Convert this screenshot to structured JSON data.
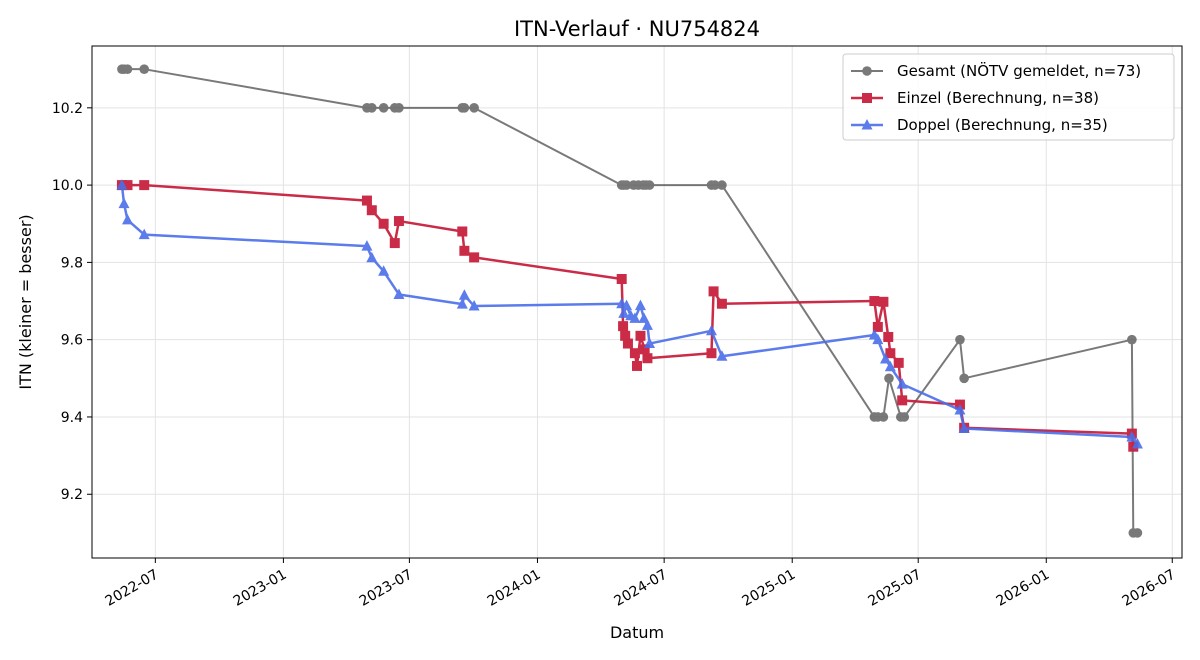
{
  "chart_data": {
    "type": "line",
    "title": "ITN-Verlauf · NU754824",
    "xlabel": "Datum",
    "ylabel": "ITN  (kleiner = besser)",
    "x_type": "date",
    "xlim": [
      "2022-04-01",
      "2026-07-15"
    ],
    "ylim": [
      9.035,
      10.36
    ],
    "x_ticks": [
      "2022-07-01",
      "2023-01-01",
      "2023-07-01",
      "2024-01-01",
      "2024-07-01",
      "2025-01-01",
      "2025-07-01",
      "2026-01-01",
      "2026-07-01"
    ],
    "x_tick_labels": [
      "2022-07",
      "2023-01",
      "2023-07",
      "2024-01",
      "2024-07",
      "2025-01",
      "2025-07",
      "2026-01",
      "2026-07"
    ],
    "y_ticks": [
      9.2,
      9.4,
      9.6,
      9.8,
      10.0,
      10.2
    ],
    "y_tick_labels": [
      "9.2",
      "9.4",
      "9.6",
      "9.8",
      "10.0",
      "10.2"
    ],
    "grid": true,
    "legend_position": "top-right",
    "series": [
      {
        "name": "Gesamt (NÖTV gemeldet, n=73)",
        "color": "#4d4d4d",
        "marker": "circle",
        "points": [
          [
            "2022-05-14",
            10.3
          ],
          [
            "2022-05-17",
            10.3
          ],
          [
            "2022-05-22",
            10.3
          ],
          [
            "2022-06-15",
            10.3
          ],
          [
            "2023-05-01",
            10.2
          ],
          [
            "2023-05-08",
            10.2
          ],
          [
            "2023-05-25",
            10.2
          ],
          [
            "2023-06-10",
            10.2
          ],
          [
            "2023-06-16",
            10.2
          ],
          [
            "2023-09-15",
            10.2
          ],
          [
            "2023-09-18",
            10.2
          ],
          [
            "2023-10-02",
            10.2
          ],
          [
            "2024-05-01",
            10.0
          ],
          [
            "2024-05-04",
            10.0
          ],
          [
            "2024-05-08",
            10.0
          ],
          [
            "2024-05-18",
            10.0
          ],
          [
            "2024-05-25",
            10.0
          ],
          [
            "2024-06-01",
            10.0
          ],
          [
            "2024-06-05",
            10.0
          ],
          [
            "2024-06-10",
            10.0
          ],
          [
            "2024-09-07",
            10.0
          ],
          [
            "2024-09-12",
            10.0
          ],
          [
            "2024-09-22",
            10.0
          ],
          [
            "2025-04-29",
            9.4
          ],
          [
            "2025-05-04",
            9.4
          ],
          [
            "2025-05-12",
            9.4
          ],
          [
            "2025-05-20",
            9.5
          ],
          [
            "2025-06-06",
            9.4
          ],
          [
            "2025-06-11",
            9.4
          ],
          [
            "2025-08-30",
            9.6
          ],
          [
            "2025-09-05",
            9.5
          ],
          [
            "2026-05-04",
            9.6
          ],
          [
            "2026-05-06",
            9.1
          ],
          [
            "2026-05-12",
            9.1
          ]
        ]
      },
      {
        "name": "Einzel (Berechnung, n=38)",
        "color": "#c8213f",
        "marker": "square",
        "points": [
          [
            "2022-05-14",
            10.0
          ],
          [
            "2022-05-22",
            10.0
          ],
          [
            "2022-06-15",
            10.0
          ],
          [
            "2023-05-01",
            9.96
          ],
          [
            "2023-05-08",
            9.935
          ],
          [
            "2023-05-25",
            9.9
          ],
          [
            "2023-06-10",
            9.85
          ],
          [
            "2023-06-16",
            9.907
          ],
          [
            "2023-09-15",
            9.88
          ],
          [
            "2023-09-18",
            9.83
          ],
          [
            "2023-10-02",
            9.813
          ],
          [
            "2024-05-01",
            9.757
          ],
          [
            "2024-05-03",
            9.635
          ],
          [
            "2024-05-06",
            9.61
          ],
          [
            "2024-05-10",
            9.59
          ],
          [
            "2024-05-20",
            9.565
          ],
          [
            "2024-05-23",
            9.532
          ],
          [
            "2024-05-28",
            9.61
          ],
          [
            "2024-06-03",
            9.575
          ],
          [
            "2024-06-07",
            9.552
          ],
          [
            "2024-09-07",
            9.565
          ],
          [
            "2024-09-10",
            9.725
          ],
          [
            "2024-09-22",
            9.693
          ],
          [
            "2025-04-29",
            9.7
          ],
          [
            "2025-05-04",
            9.633
          ],
          [
            "2025-05-12",
            9.698
          ],
          [
            "2025-05-19",
            9.607
          ],
          [
            "2025-05-22",
            9.565
          ],
          [
            "2025-06-03",
            9.54
          ],
          [
            "2025-06-08",
            9.443
          ],
          [
            "2025-08-30",
            9.432
          ],
          [
            "2025-09-05",
            9.372
          ],
          [
            "2026-05-04",
            9.357
          ],
          [
            "2026-05-06",
            9.323
          ]
        ]
      },
      {
        "name": "Doppel (Berechnung, n=35)",
        "color": "#4a6ee8",
        "marker": "triangle",
        "points": [
          [
            "2022-05-14",
            10.0
          ],
          [
            "2022-05-17",
            9.952
          ],
          [
            "2022-05-22",
            9.91
          ],
          [
            "2022-06-15",
            9.872
          ],
          [
            "2023-05-01",
            9.842
          ],
          [
            "2023-05-08",
            9.812
          ],
          [
            "2023-05-25",
            9.777
          ],
          [
            "2023-06-16",
            9.717
          ],
          [
            "2023-09-15",
            9.692
          ],
          [
            "2023-09-18",
            9.715
          ],
          [
            "2023-10-02",
            9.687
          ],
          [
            "2024-05-01",
            9.693
          ],
          [
            "2024-05-04",
            9.668
          ],
          [
            "2024-05-08",
            9.688
          ],
          [
            "2024-05-14",
            9.662
          ],
          [
            "2024-05-20",
            9.655
          ],
          [
            "2024-05-28",
            9.688
          ],
          [
            "2024-06-02",
            9.655
          ],
          [
            "2024-06-07",
            9.637
          ],
          [
            "2024-06-10",
            9.59
          ],
          [
            "2024-09-07",
            9.623
          ],
          [
            "2024-09-22",
            9.557
          ],
          [
            "2025-04-29",
            9.612
          ],
          [
            "2025-05-04",
            9.6
          ],
          [
            "2025-05-15",
            9.55
          ],
          [
            "2025-05-22",
            9.53
          ],
          [
            "2025-06-08",
            9.485
          ],
          [
            "2025-08-30",
            9.418
          ],
          [
            "2025-09-05",
            9.37
          ],
          [
            "2026-05-04",
            9.348
          ],
          [
            "2026-05-12",
            9.33
          ]
        ]
      }
    ]
  }
}
